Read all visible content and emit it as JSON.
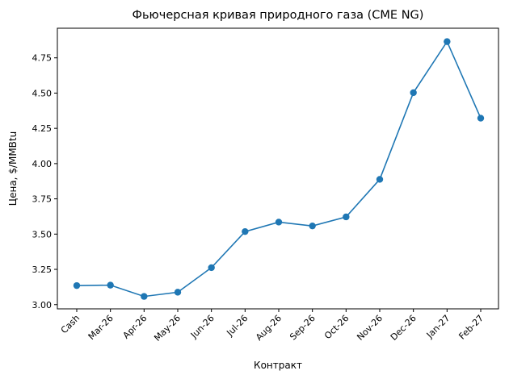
{
  "chart_data": {
    "type": "line",
    "title": "Фьючерсная кривая природного газа (CME NG)",
    "xlabel": "Контракт",
    "ylabel": "Цена, $/MMBtu",
    "categories": [
      "Cash",
      "Mar-26",
      "Apr-26",
      "May-26",
      "Jun-26",
      "Jul-26",
      "Aug-26",
      "Sep-26",
      "Oct-26",
      "Nov-26",
      "Dec-26",
      "Jan-27",
      "Feb-27"
    ],
    "series": [
      {
        "values": [
          3.135,
          3.138,
          3.058,
          3.088,
          3.262,
          3.518,
          3.585,
          3.558,
          3.622,
          3.888,
          4.503,
          4.865,
          4.322
        ],
        "color": "#1f77b4",
        "marker": "circle"
      }
    ],
    "ylim": [
      2.97,
      4.96
    ],
    "yticks": [
      3.0,
      3.25,
      3.5,
      3.75,
      4.0,
      4.25,
      4.5,
      4.75
    ],
    "ytick_labels": [
      "3.00",
      "3.25",
      "3.50",
      "3.75",
      "4.00",
      "4.25",
      "4.50",
      "4.75"
    ],
    "grid": false,
    "legend": "none"
  }
}
